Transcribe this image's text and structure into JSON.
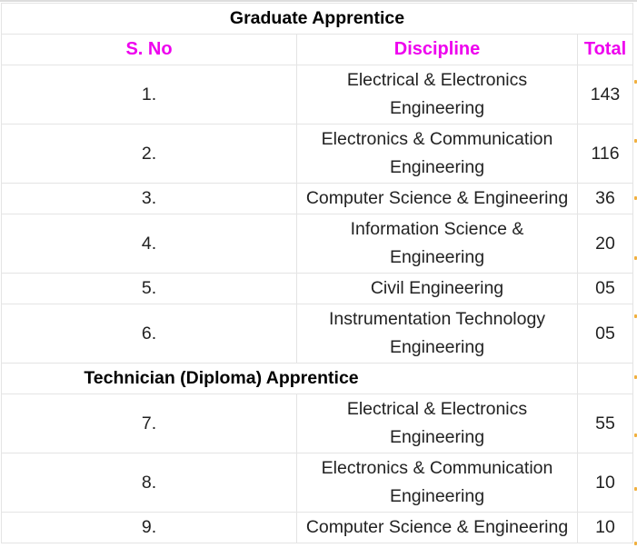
{
  "sections": [
    {
      "title": "Graduate Apprentice"
    },
    {
      "title": "Technician (Diploma) Apprentice"
    }
  ],
  "columns": [
    "S. No",
    "Discipline",
    "Total"
  ],
  "header_color": "#ee00ee",
  "rows": [
    {
      "sno": "1.",
      "discipline": "Electrical & Electronics Engineering",
      "total": "143"
    },
    {
      "sno": "2.",
      "discipline": "Electronics & Communication Engineering",
      "total": "116"
    },
    {
      "sno": "3.",
      "discipline": "Computer Science & Engineering",
      "total": "36"
    },
    {
      "sno": "4.",
      "discipline": "Information Science & Engineering",
      "total": "20"
    },
    {
      "sno": "5.",
      "discipline": "Civil Engineering",
      "total": "05"
    },
    {
      "sno": "6.",
      "discipline": "Instrumentation Technology Engineering",
      "total": "05"
    },
    {
      "sno": "7.",
      "discipline": "Electrical & Electronics Engineering",
      "total": "55"
    },
    {
      "sno": "8.",
      "discipline": "Electronics & Communication Engineering",
      "total": "10"
    },
    {
      "sno": "9.",
      "discipline": "Computer Science & Engineering",
      "total": "10"
    }
  ]
}
